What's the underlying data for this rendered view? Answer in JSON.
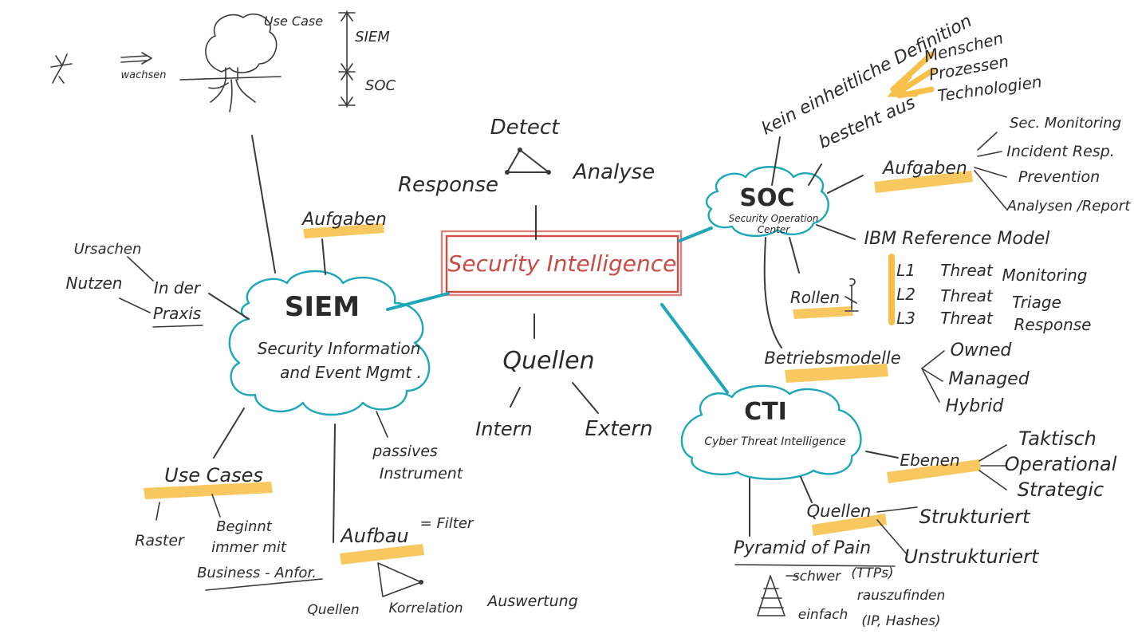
{
  "center": {
    "title": "Security Intelligence"
  },
  "triangle": {
    "top": "Detect",
    "left": "Response",
    "right": "Analyse"
  },
  "quellen": {
    "title": "Quellen",
    "intern": "Intern",
    "extern": "Extern"
  },
  "siem": {
    "title": "SIEM",
    "line1": "Security Information",
    "line2": "and Event Mgmt .",
    "aufgaben": "Aufgaben",
    "praxis": {
      "prefix": "In der",
      "label": "Praxis",
      "ursachen": "Ursachen",
      "nutzen": "Nutzen"
    },
    "passives": {
      "line1": "passives",
      "line2": "Instrument"
    },
    "tree": {
      "usecase": "Use Case",
      "wachsen": "wachsen",
      "siem": "SIEM",
      "soc": "SOC"
    },
    "usecases": {
      "title": "Use Cases",
      "raster": "Raster",
      "beginnt1": "Beginnt",
      "beginnt2": "immer mit",
      "beginnt3": "Business - Anfor."
    },
    "aufbau": {
      "title": "Aufbau",
      "filter": "= Filter",
      "quellen": "Quellen",
      "korrelation": "Korrelation",
      "auswertung": "Auswertung"
    }
  },
  "soc": {
    "title": "SOC",
    "subtitle1": "Security Operation",
    "subtitle2": "Center",
    "definition": "kein einheitliche Definition",
    "besteht": "besteht aus",
    "besteht_items": [
      "Menschen",
      "Prozessen",
      "Technologien"
    ],
    "aufgaben": "Aufgaben",
    "aufgaben_items": [
      "Sec. Monitoring",
      "Incident Resp.",
      "Prevention",
      "Analysen /Report"
    ],
    "ibm": "IBM Reference Model",
    "levels": [
      {
        "level": "L1",
        "threat": "Threat",
        "action": "Monitoring"
      },
      {
        "level": "L2",
        "threat": "Threat",
        "action": "Triage"
      },
      {
        "level": "L3",
        "threat": "Threat",
        "action": "Response"
      }
    ],
    "rollen": "Rollen",
    "betrieb": "Betriebsmodelle",
    "betrieb_items": [
      "Owned",
      "Managed",
      "Hybrid"
    ]
  },
  "cti": {
    "title": "CTI",
    "subtitle": "Cyber Threat Intelligence",
    "ebenen": "Ebenen",
    "ebenen_items": [
      "Taktisch",
      "Operational",
      "Strategic"
    ],
    "quellen": "Quellen",
    "quellen_items": [
      "Strukturiert",
      "Unstrukturiert"
    ],
    "pyramid": "Pyramid of Pain",
    "schwer": "schwer",
    "ttps": "(TTPs)",
    "herauszufinden": "rauszufinden",
    "einfach": "einfach",
    "hashes": "(IP, Hashes)"
  }
}
